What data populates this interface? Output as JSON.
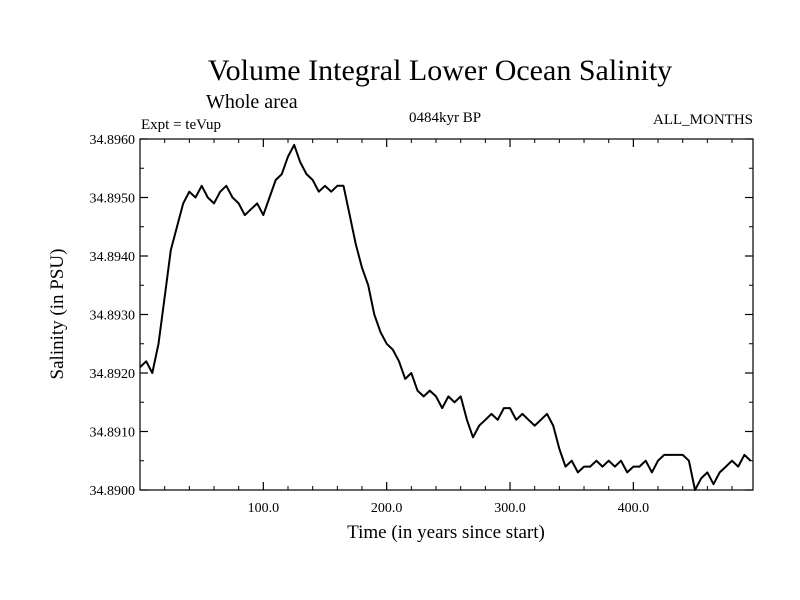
{
  "chart_data": {
    "type": "line",
    "title": "Volume Integral Lower Ocean Salinity",
    "subtitle": "Whole area",
    "left_label": "Expt = teVup",
    "center_label": "0484kyr BP",
    "right_label": "ALL_MONTHS",
    "xlabel": "Time (in years since start)",
    "ylabel": "Salinity (in PSU)",
    "xlim": [
      0,
      497
    ],
    "ylim": [
      34.89,
      34.896
    ],
    "xticks": [
      100,
      200,
      300,
      400
    ],
    "xtick_labels": [
      "100.0",
      "200.0",
      "300.0",
      "400.0"
    ],
    "yticks": [
      34.89,
      34.891,
      34.892,
      34.893,
      34.894,
      34.895,
      34.896
    ],
    "ytick_labels": [
      "34.8900",
      "34.8910",
      "34.8920",
      "34.8930",
      "34.8940",
      "34.8950",
      "34.8960"
    ],
    "grid": false,
    "line_color": "#000000",
    "series": [
      {
        "x": [
          0,
          5,
          10,
          15,
          20,
          25,
          30,
          35,
          40,
          45,
          50,
          55,
          60,
          65,
          70,
          75,
          80,
          85,
          90,
          95,
          100,
          105,
          110,
          115,
          120,
          125,
          130,
          135,
          140,
          145,
          150,
          155,
          160,
          165,
          170,
          175,
          180,
          185,
          190,
          195,
          200,
          205,
          210,
          215,
          220,
          225,
          230,
          235,
          240,
          245,
          250,
          255,
          260,
          265,
          270,
          275,
          280,
          285,
          290,
          295,
          300,
          305,
          310,
          315,
          320,
          325,
          330,
          335,
          340,
          345,
          350,
          355,
          360,
          365,
          370,
          375,
          380,
          385,
          390,
          395,
          400,
          405,
          410,
          415,
          420,
          425,
          430,
          435,
          440,
          445,
          450,
          455,
          460,
          465,
          470,
          475,
          480,
          485,
          490,
          495
        ],
        "values": [
          34.8921,
          34.8922,
          34.892,
          34.8925,
          34.8933,
          34.8941,
          34.8945,
          34.8949,
          34.8951,
          34.895,
          34.8952,
          34.895,
          34.8949,
          34.8951,
          34.8952,
          34.895,
          34.8949,
          34.8947,
          34.8948,
          34.8949,
          34.8947,
          34.895,
          34.8953,
          34.8954,
          34.8957,
          34.8959,
          34.8956,
          34.8954,
          34.8953,
          34.8951,
          34.8952,
          34.8951,
          34.8952,
          34.8952,
          34.8947,
          34.8942,
          34.8938,
          34.8935,
          34.893,
          34.8927,
          34.8925,
          34.8924,
          34.8922,
          34.8919,
          34.892,
          34.8917,
          34.8916,
          34.8917,
          34.8916,
          34.8914,
          34.8916,
          34.8915,
          34.8916,
          34.8912,
          34.8909,
          34.8911,
          34.8912,
          34.8913,
          34.8912,
          34.8914,
          34.8914,
          34.8912,
          34.8913,
          34.8912,
          34.8911,
          34.8912,
          34.8913,
          34.8911,
          34.8907,
          34.8904,
          34.8905,
          34.8903,
          34.8904,
          34.8904,
          34.8905,
          34.8904,
          34.8905,
          34.8904,
          34.8905,
          34.8903,
          34.8904,
          34.8904,
          34.8905,
          34.8903,
          34.8905,
          34.8906,
          34.8906,
          34.8906,
          34.8906,
          34.8905,
          34.89,
          34.8902,
          34.8903,
          34.8901,
          34.8903,
          34.8904,
          34.8905,
          34.8904,
          34.8906,
          34.8905
        ]
      }
    ]
  }
}
